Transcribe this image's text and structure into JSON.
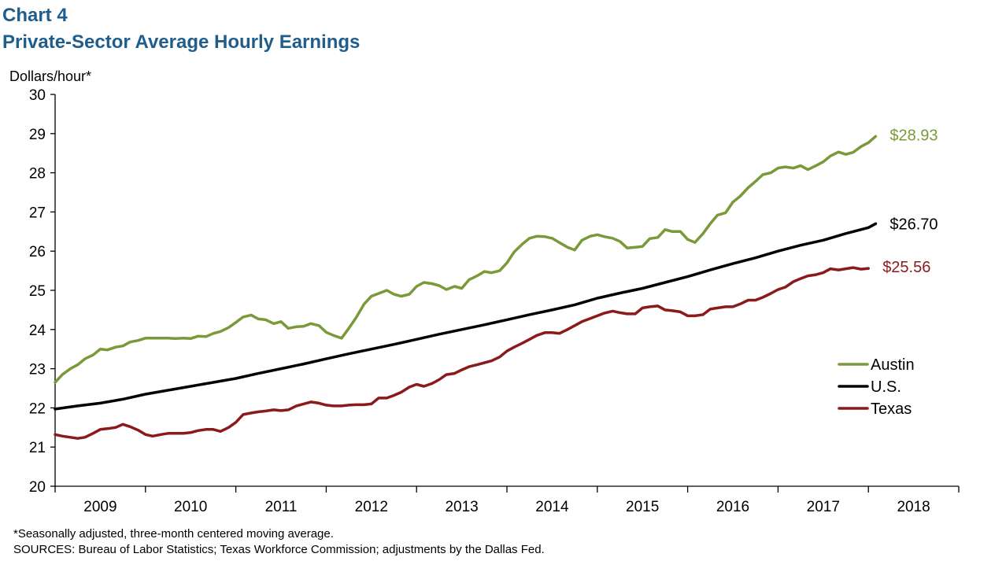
{
  "header": {
    "chart_number": "Chart 4",
    "title": "Private-Sector Average Hourly Earnings"
  },
  "footnotes": [
    "*Seasonally adjusted, three-month centered moving average.",
    "SOURCES: Bureau of Labor Statistics; Texas Workforce Commission; adjustments by the Dallas Fed."
  ],
  "chart_data": {
    "type": "line",
    "title": "Private-Sector Average Hourly Earnings",
    "ylabel": "Dollars/hour*",
    "xlabel": "",
    "ylim": [
      20,
      30
    ],
    "yticks": [
      20,
      21,
      22,
      23,
      24,
      25,
      26,
      27,
      28,
      29,
      30
    ],
    "xlim": [
      2009,
      2019
    ],
    "x_tick_labels": [
      "2009",
      "2010",
      "2011",
      "2012",
      "2013",
      "2014",
      "2015",
      "2016",
      "2017",
      "2018"
    ],
    "grid": false,
    "legend_position": "right",
    "series": [
      {
        "name": "Austin",
        "color": "#7a9a3a",
        "end_label": "$28.93",
        "points": [
          [
            2009.0,
            22.65
          ],
          [
            2009.08,
            22.85
          ],
          [
            2009.17,
            23.0
          ],
          [
            2009.25,
            23.1
          ],
          [
            2009.33,
            23.25
          ],
          [
            2009.42,
            23.35
          ],
          [
            2009.5,
            23.5
          ],
          [
            2009.58,
            23.48
          ],
          [
            2009.67,
            23.55
          ],
          [
            2009.75,
            23.58
          ],
          [
            2009.83,
            23.68
          ],
          [
            2009.92,
            23.72
          ],
          [
            2010.0,
            23.78
          ],
          [
            2010.08,
            23.78
          ],
          [
            2010.17,
            23.78
          ],
          [
            2010.25,
            23.78
          ],
          [
            2010.33,
            23.77
          ],
          [
            2010.42,
            23.78
          ],
          [
            2010.5,
            23.77
          ],
          [
            2010.58,
            23.83
          ],
          [
            2010.67,
            23.82
          ],
          [
            2010.75,
            23.9
          ],
          [
            2010.83,
            23.95
          ],
          [
            2010.92,
            24.05
          ],
          [
            2011.0,
            24.18
          ],
          [
            2011.08,
            24.32
          ],
          [
            2011.17,
            24.37
          ],
          [
            2011.25,
            24.27
          ],
          [
            2011.33,
            24.25
          ],
          [
            2011.42,
            24.15
          ],
          [
            2011.5,
            24.2
          ],
          [
            2011.58,
            24.03
          ],
          [
            2011.67,
            24.07
          ],
          [
            2011.75,
            24.08
          ],
          [
            2011.83,
            24.15
          ],
          [
            2011.92,
            24.1
          ],
          [
            2012.0,
            23.93
          ],
          [
            2012.08,
            23.85
          ],
          [
            2012.17,
            23.78
          ],
          [
            2012.25,
            24.03
          ],
          [
            2012.33,
            24.3
          ],
          [
            2012.42,
            24.65
          ],
          [
            2012.5,
            24.85
          ],
          [
            2012.58,
            24.92
          ],
          [
            2012.67,
            25.0
          ],
          [
            2012.75,
            24.9
          ],
          [
            2012.83,
            24.85
          ],
          [
            2012.92,
            24.9
          ],
          [
            2013.0,
            25.1
          ],
          [
            2013.08,
            25.2
          ],
          [
            2013.17,
            25.17
          ],
          [
            2013.25,
            25.12
          ],
          [
            2013.33,
            25.02
          ],
          [
            2013.42,
            25.1
          ],
          [
            2013.5,
            25.05
          ],
          [
            2013.58,
            25.27
          ],
          [
            2013.67,
            25.37
          ],
          [
            2013.75,
            25.48
          ],
          [
            2013.83,
            25.45
          ],
          [
            2013.92,
            25.5
          ],
          [
            2014.0,
            25.7
          ],
          [
            2014.08,
            25.98
          ],
          [
            2014.17,
            26.18
          ],
          [
            2014.25,
            26.33
          ],
          [
            2014.33,
            26.38
          ],
          [
            2014.42,
            26.37
          ],
          [
            2014.5,
            26.33
          ],
          [
            2014.58,
            26.22
          ],
          [
            2014.67,
            26.1
          ],
          [
            2014.75,
            26.03
          ],
          [
            2014.83,
            26.28
          ],
          [
            2014.92,
            26.38
          ],
          [
            2015.0,
            26.42
          ],
          [
            2015.08,
            26.37
          ],
          [
            2015.17,
            26.33
          ],
          [
            2015.25,
            26.25
          ],
          [
            2015.33,
            26.08
          ],
          [
            2015.42,
            26.1
          ],
          [
            2015.5,
            26.12
          ],
          [
            2015.58,
            26.32
          ],
          [
            2015.67,
            26.35
          ],
          [
            2015.75,
            26.55
          ],
          [
            2015.83,
            26.5
          ],
          [
            2015.92,
            26.5
          ],
          [
            2016.0,
            26.3
          ],
          [
            2016.08,
            26.22
          ],
          [
            2016.17,
            26.45
          ],
          [
            2016.25,
            26.7
          ],
          [
            2016.33,
            26.92
          ],
          [
            2016.42,
            26.98
          ],
          [
            2016.5,
            27.25
          ],
          [
            2016.58,
            27.4
          ],
          [
            2016.67,
            27.62
          ],
          [
            2016.75,
            27.78
          ],
          [
            2016.83,
            27.95
          ],
          [
            2016.92,
            28.0
          ],
          [
            2017.0,
            28.12
          ],
          [
            2017.08,
            28.15
          ],
          [
            2017.17,
            28.12
          ],
          [
            2017.25,
            28.18
          ],
          [
            2017.33,
            28.08
          ],
          [
            2017.42,
            28.18
          ],
          [
            2017.5,
            28.28
          ],
          [
            2017.58,
            28.43
          ],
          [
            2017.67,
            28.53
          ],
          [
            2017.75,
            28.47
          ],
          [
            2017.83,
            28.52
          ],
          [
            2017.92,
            28.67
          ],
          [
            2018.0,
            28.77
          ],
          [
            2018.08,
            28.93
          ]
        ]
      },
      {
        "name": "U.S.",
        "color": "#000000",
        "end_label": "$26.70",
        "points": [
          [
            2009.0,
            21.97
          ],
          [
            2009.25,
            22.05
          ],
          [
            2009.5,
            22.12
          ],
          [
            2009.75,
            22.22
          ],
          [
            2010.0,
            22.35
          ],
          [
            2010.25,
            22.45
          ],
          [
            2010.5,
            22.55
          ],
          [
            2010.75,
            22.65
          ],
          [
            2011.0,
            22.75
          ],
          [
            2011.25,
            22.88
          ],
          [
            2011.5,
            23.0
          ],
          [
            2011.75,
            23.12
          ],
          [
            2012.0,
            23.25
          ],
          [
            2012.25,
            23.38
          ],
          [
            2012.5,
            23.5
          ],
          [
            2012.75,
            23.62
          ],
          [
            2013.0,
            23.75
          ],
          [
            2013.25,
            23.88
          ],
          [
            2013.5,
            24.0
          ],
          [
            2013.75,
            24.12
          ],
          [
            2014.0,
            24.25
          ],
          [
            2014.25,
            24.38
          ],
          [
            2014.5,
            24.5
          ],
          [
            2014.75,
            24.63
          ],
          [
            2015.0,
            24.8
          ],
          [
            2015.25,
            24.93
          ],
          [
            2015.5,
            25.05
          ],
          [
            2015.75,
            25.2
          ],
          [
            2016.0,
            25.35
          ],
          [
            2016.25,
            25.52
          ],
          [
            2016.5,
            25.68
          ],
          [
            2016.75,
            25.83
          ],
          [
            2017.0,
            26.0
          ],
          [
            2017.25,
            26.15
          ],
          [
            2017.5,
            26.28
          ],
          [
            2017.75,
            26.45
          ],
          [
            2018.0,
            26.6
          ],
          [
            2018.08,
            26.7
          ]
        ]
      },
      {
        "name": "Texas",
        "color": "#8b1a1a",
        "end_label": "$25.56",
        "points": [
          [
            2009.0,
            21.32
          ],
          [
            2009.08,
            21.28
          ],
          [
            2009.17,
            21.25
          ],
          [
            2009.25,
            21.22
          ],
          [
            2009.33,
            21.25
          ],
          [
            2009.42,
            21.35
          ],
          [
            2009.5,
            21.45
          ],
          [
            2009.58,
            21.47
          ],
          [
            2009.67,
            21.5
          ],
          [
            2009.75,
            21.58
          ],
          [
            2009.83,
            21.52
          ],
          [
            2009.92,
            21.43
          ],
          [
            2010.0,
            21.32
          ],
          [
            2010.08,
            21.28
          ],
          [
            2010.17,
            21.32
          ],
          [
            2010.25,
            21.35
          ],
          [
            2010.33,
            21.35
          ],
          [
            2010.42,
            21.35
          ],
          [
            2010.5,
            21.37
          ],
          [
            2010.58,
            21.42
          ],
          [
            2010.67,
            21.45
          ],
          [
            2010.75,
            21.45
          ],
          [
            2010.83,
            21.4
          ],
          [
            2010.92,
            21.5
          ],
          [
            2011.0,
            21.63
          ],
          [
            2011.08,
            21.83
          ],
          [
            2011.17,
            21.87
          ],
          [
            2011.25,
            21.9
          ],
          [
            2011.33,
            21.92
          ],
          [
            2011.42,
            21.95
          ],
          [
            2011.5,
            21.93
          ],
          [
            2011.58,
            21.95
          ],
          [
            2011.67,
            22.05
          ],
          [
            2011.75,
            22.1
          ],
          [
            2011.83,
            22.15
          ],
          [
            2011.92,
            22.12
          ],
          [
            2012.0,
            22.07
          ],
          [
            2012.08,
            22.05
          ],
          [
            2012.17,
            22.05
          ],
          [
            2012.25,
            22.07
          ],
          [
            2012.33,
            22.08
          ],
          [
            2012.42,
            22.08
          ],
          [
            2012.5,
            22.1
          ],
          [
            2012.58,
            22.25
          ],
          [
            2012.67,
            22.25
          ],
          [
            2012.75,
            22.32
          ],
          [
            2012.83,
            22.4
          ],
          [
            2012.92,
            22.53
          ],
          [
            2013.0,
            22.6
          ],
          [
            2013.08,
            22.55
          ],
          [
            2013.17,
            22.62
          ],
          [
            2013.25,
            22.72
          ],
          [
            2013.33,
            22.85
          ],
          [
            2013.42,
            22.88
          ],
          [
            2013.5,
            22.97
          ],
          [
            2013.58,
            23.05
          ],
          [
            2013.67,
            23.1
          ],
          [
            2013.75,
            23.15
          ],
          [
            2013.83,
            23.2
          ],
          [
            2013.92,
            23.3
          ],
          [
            2014.0,
            23.45
          ],
          [
            2014.08,
            23.55
          ],
          [
            2014.17,
            23.65
          ],
          [
            2014.25,
            23.75
          ],
          [
            2014.33,
            23.85
          ],
          [
            2014.42,
            23.92
          ],
          [
            2014.5,
            23.92
          ],
          [
            2014.58,
            23.9
          ],
          [
            2014.67,
            24.0
          ],
          [
            2014.75,
            24.1
          ],
          [
            2014.83,
            24.2
          ],
          [
            2014.92,
            24.28
          ],
          [
            2015.0,
            24.35
          ],
          [
            2015.08,
            24.42
          ],
          [
            2015.17,
            24.47
          ],
          [
            2015.25,
            24.43
          ],
          [
            2015.33,
            24.4
          ],
          [
            2015.42,
            24.4
          ],
          [
            2015.5,
            24.55
          ],
          [
            2015.58,
            24.58
          ],
          [
            2015.67,
            24.6
          ],
          [
            2015.75,
            24.5
          ],
          [
            2015.83,
            24.48
          ],
          [
            2015.92,
            24.45
          ],
          [
            2016.0,
            24.35
          ],
          [
            2016.08,
            24.35
          ],
          [
            2016.17,
            24.38
          ],
          [
            2016.25,
            24.52
          ],
          [
            2016.33,
            24.55
          ],
          [
            2016.42,
            24.58
          ],
          [
            2016.5,
            24.58
          ],
          [
            2016.58,
            24.65
          ],
          [
            2016.67,
            24.75
          ],
          [
            2016.75,
            24.75
          ],
          [
            2016.83,
            24.82
          ],
          [
            2016.92,
            24.92
          ],
          [
            2017.0,
            25.02
          ],
          [
            2017.08,
            25.08
          ],
          [
            2017.17,
            25.22
          ],
          [
            2017.25,
            25.3
          ],
          [
            2017.33,
            25.37
          ],
          [
            2017.42,
            25.4
          ],
          [
            2017.5,
            25.45
          ],
          [
            2017.58,
            25.55
          ],
          [
            2017.67,
            25.52
          ],
          [
            2017.75,
            25.55
          ],
          [
            2017.83,
            25.58
          ],
          [
            2017.92,
            25.54
          ],
          [
            2018.0,
            25.56
          ]
        ]
      }
    ]
  }
}
